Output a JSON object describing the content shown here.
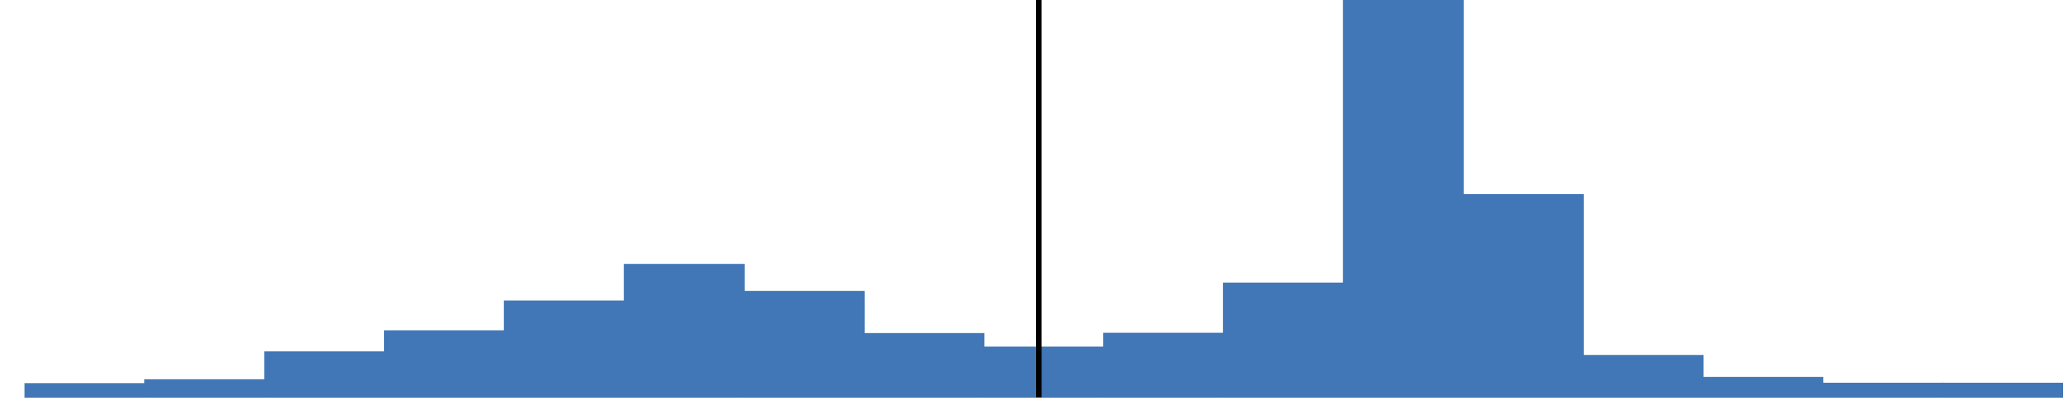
{
  "chart_data": {
    "type": "bar",
    "title": "",
    "xlabel": "",
    "ylabel": "",
    "bar_color": "#4177b6",
    "reference_line_color": "#000000",
    "grid": false,
    "legend": "none",
    "ylim": [
      0,
      100
    ],
    "xlim": [
      0,
      17
    ],
    "values": [
      3.5,
      4.5,
      11.5,
      16.8,
      24.3,
      33.5,
      26.7,
      16.1,
      12.7,
      16.2,
      28.8,
      100,
      51.1,
      10.6,
      5.1,
      3.6,
      3.6
    ],
    "reference_line_x": 8.46
  }
}
